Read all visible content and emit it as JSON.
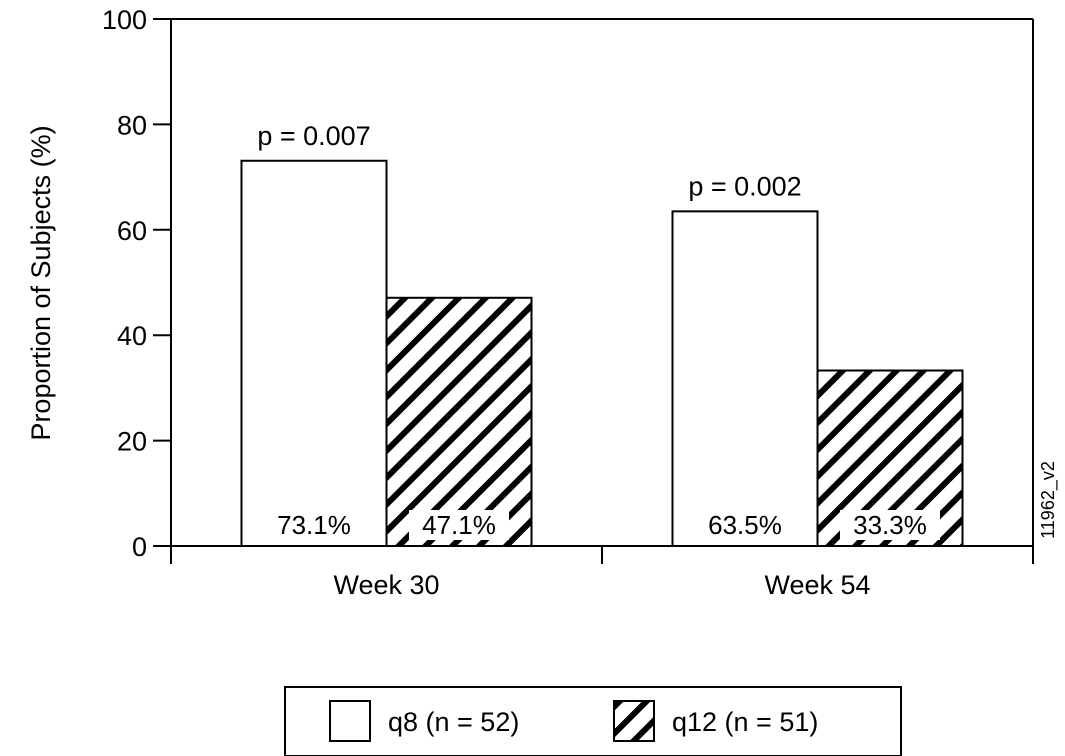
{
  "chart_data": {
    "type": "bar",
    "categories": [
      "Week 30",
      "Week 54"
    ],
    "series": [
      {
        "name": "q8 (n = 52)",
        "values": [
          73.1,
          63.5
        ],
        "pattern": "solid",
        "fill": "#ffffff"
      },
      {
        "name": "q12 (n = 51)",
        "values": [
          47.1,
          33.3
        ],
        "pattern": "diagonal-hatch",
        "fill": "#000000"
      }
    ],
    "data_labels": [
      [
        "73.1%",
        "63.5%"
      ],
      [
        "47.1%",
        "33.3%"
      ]
    ],
    "annotations": [
      "p = 0.007",
      "p = 0.002"
    ],
    "title": "",
    "xlabel": "",
    "ylabel": "Proportion of Subjects (%)",
    "ylim": [
      0,
      100
    ],
    "yticks": [
      0,
      20,
      40,
      60,
      80,
      100
    ],
    "grid": false,
    "legend_position": "bottom-center",
    "figure_id": "11962_v2"
  }
}
